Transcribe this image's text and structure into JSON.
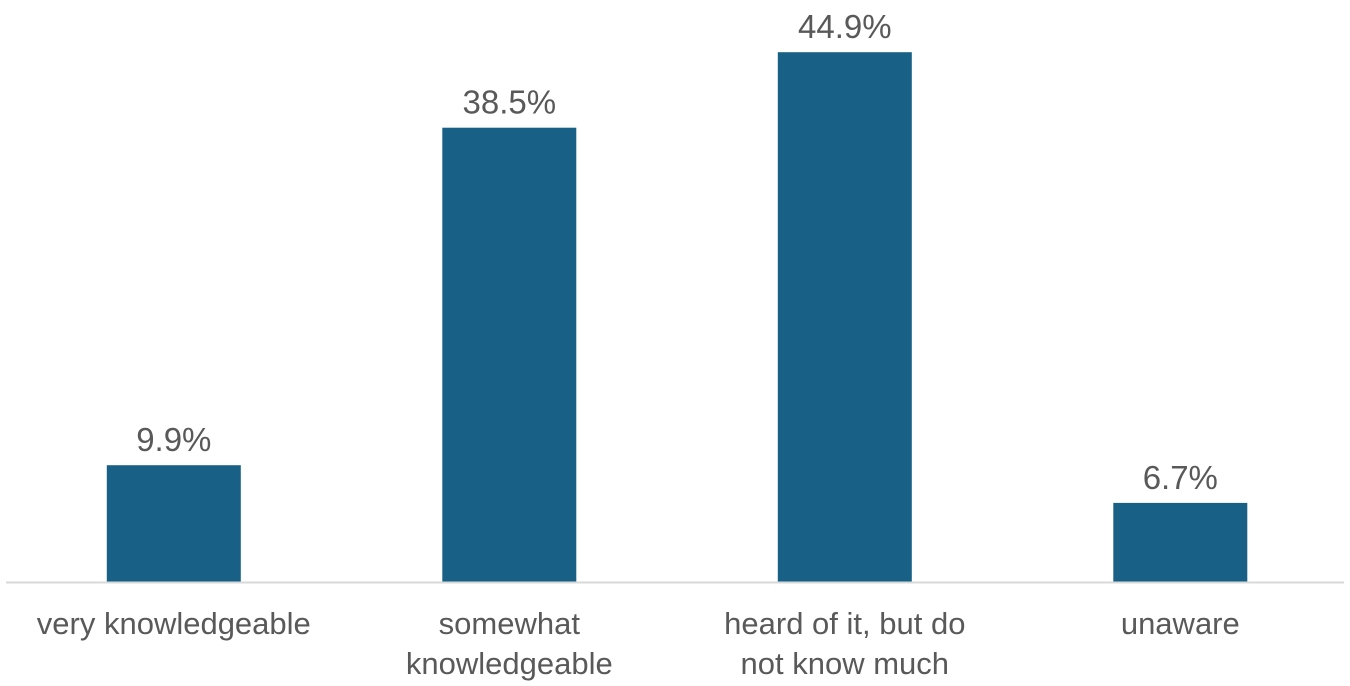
{
  "chart_data": {
    "type": "bar",
    "categories": [
      [
        "very knowledgeable"
      ],
      [
        "somewhat",
        "knowledgeable"
      ],
      [
        "heard of it, but do",
        "not know much"
      ],
      [
        "unaware"
      ]
    ],
    "values": [
      9.9,
      38.5,
      44.9,
      6.7
    ],
    "data_labels": [
      "9.9%",
      "38.5%",
      "44.9%",
      "6.7%"
    ],
    "title": "",
    "xlabel": "",
    "ylabel": "",
    "ylim": [
      0,
      50
    ],
    "grid": false,
    "legend": "none",
    "bar_color": "#186085",
    "axis_color": "#d9d9d9",
    "text_color": "#595959"
  }
}
